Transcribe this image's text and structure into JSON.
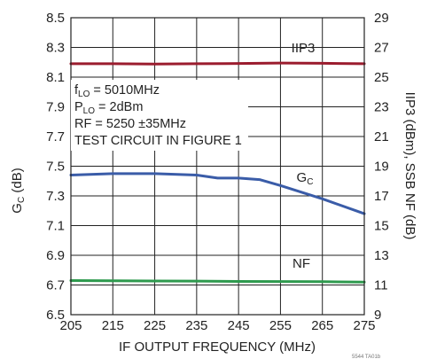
{
  "chart_data": {
    "type": "line",
    "xlabel": "IF OUTPUT FREQUENCY (MHz)",
    "ylabel_left": "G_C (dB)",
    "ylabel_right": "IIP3 (dBm), SSB NF (dB)",
    "xlim": [
      205,
      275
    ],
    "ylim_left": [
      6.5,
      8.5
    ],
    "ylim_right": [
      9,
      29
    ],
    "grid": true,
    "x_ticks": [
      205,
      215,
      225,
      235,
      245,
      255,
      265,
      275
    ],
    "y_left_ticks": [
      "6.5",
      "6.7",
      "6.9",
      "7.1",
      "7.3",
      "7.5",
      "7.7",
      "7.9",
      "8.1",
      "8.3",
      "8.5"
    ],
    "y_right_ticks": [
      "9",
      "11",
      "13",
      "15",
      "17",
      "19",
      "21",
      "23",
      "25",
      "27",
      "29"
    ],
    "annotations": [
      "f_LO = 5010MHz",
      "P_LO = 2dBm",
      "RF = 5250 ±35MHz",
      "TEST CIRCUIT IN FIGURE 1"
    ],
    "figure_id": "5544 TA01b",
    "series": [
      {
        "name": "IIP3",
        "axis": "right",
        "color": "#9b1c2e",
        "x": [
          205,
          215,
          225,
          235,
          245,
          255,
          265,
          275
        ],
        "y": [
          25.9,
          25.9,
          25.88,
          25.9,
          25.92,
          25.95,
          25.93,
          25.9
        ]
      },
      {
        "name": "G_C",
        "axis": "left",
        "color": "#3a5ca8",
        "x": [
          205,
          215,
          225,
          235,
          240,
          245,
          250,
          255,
          265,
          275
        ],
        "y": [
          7.44,
          7.45,
          7.45,
          7.44,
          7.42,
          7.42,
          7.41,
          7.37,
          7.28,
          7.18
        ]
      },
      {
        "name": "NF",
        "axis": "right",
        "color": "#2e9a4e",
        "x": [
          205,
          215,
          225,
          235,
          245,
          255,
          265,
          275
        ],
        "y": [
          11.3,
          11.28,
          11.27,
          11.26,
          11.24,
          11.23,
          11.22,
          11.2
        ]
      }
    ],
    "series_labels": {
      "IIP3": {
        "main": "IIP3",
        "sub": ""
      },
      "G_C": {
        "main": "G",
        "sub": "C"
      },
      "NF": {
        "main": "NF",
        "sub": ""
      }
    }
  },
  "labels": {
    "ylabel_left_main": "G",
    "ylabel_left_sub": "C",
    "ylabel_left_rest": " (dB)",
    "note1_main": "f",
    "note1_sub": "LO",
    "note1_rest": " = 5010MHz",
    "note2_main": "P",
    "note2_sub": "LO",
    "note2_rest": " = 2dBm"
  }
}
